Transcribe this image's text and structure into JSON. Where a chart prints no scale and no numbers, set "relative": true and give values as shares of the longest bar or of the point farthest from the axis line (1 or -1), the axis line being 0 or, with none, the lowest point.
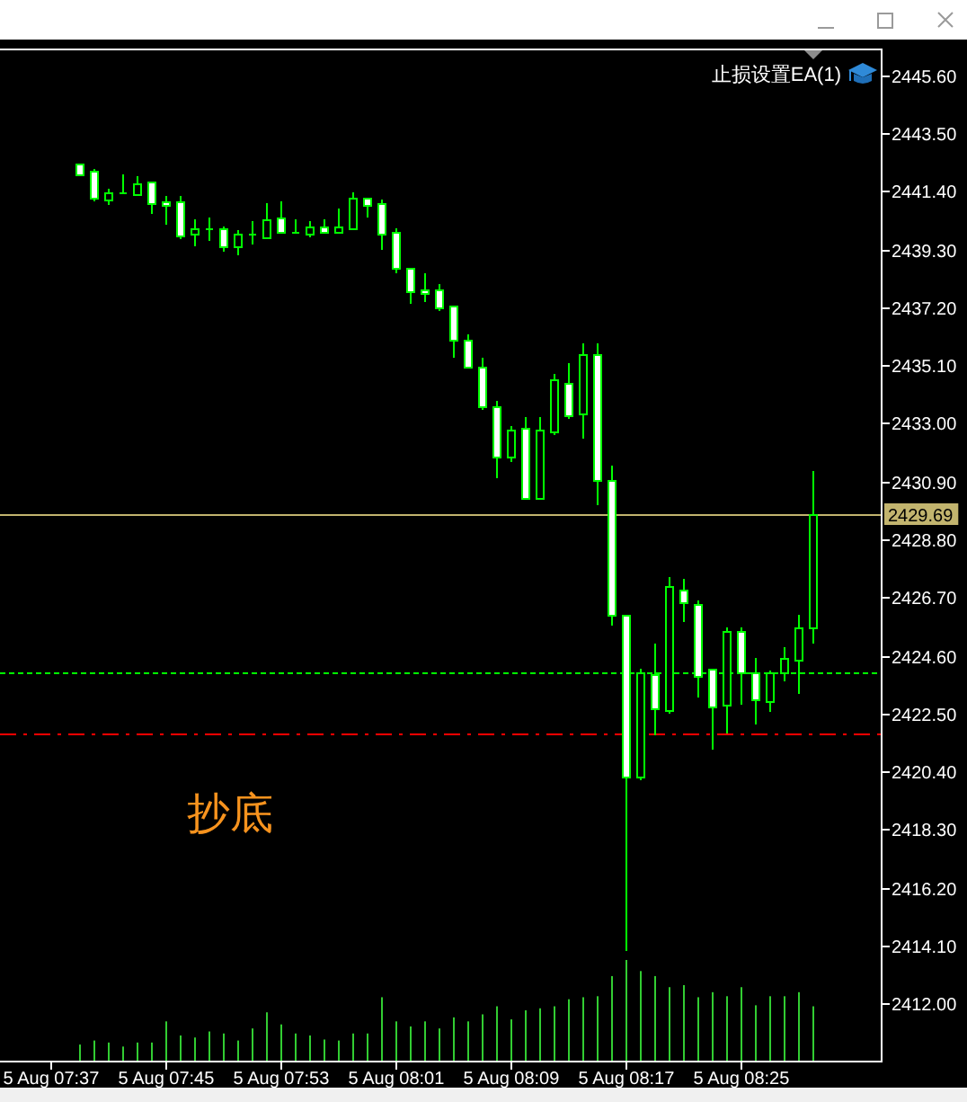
{
  "chart_data": [
    {
      "type": "candlestick",
      "categories": [
        "5 Aug 07:37",
        null,
        null,
        null,
        null,
        null,
        null,
        null,
        "5 Aug 07:45",
        null,
        null,
        null,
        null,
        null,
        null,
        null,
        "5 Aug 07:53",
        null,
        null,
        null,
        null,
        null,
        null,
        null,
        "5 Aug 08:01",
        null,
        null,
        null,
        null,
        null,
        null,
        null,
        "5 Aug 08:09",
        null,
        null,
        null,
        null,
        null,
        null,
        null,
        "5 Aug 08:17",
        null,
        null,
        null,
        null,
        null,
        null,
        null,
        "5 Aug 08:25",
        null,
        null,
        null,
        null,
        null
      ],
      "ohlc": [
        null,
        null,
        [
          2442.39,
          2442.39,
          2441.98,
          2442.02
        ],
        [
          2442.13,
          2442.2,
          2441.11,
          2441.18
        ],
        [
          2441.11,
          2441.48,
          2440.98,
          2441.33
        ],
        [
          2441.33,
          2442.0,
          2441.33,
          2441.33
        ],
        [
          2441.31,
          2441.94,
          2441.31,
          2441.68
        ],
        [
          2441.74,
          2441.74,
          2440.65,
          2440.94
        ],
        [
          2441.03,
          2441.22,
          2440.26,
          2440.92
        ],
        [
          2441.03,
          2441.22,
          2439.74,
          2439.81
        ],
        [
          2439.87,
          2440.39,
          2439.48,
          2440.05
        ],
        [
          2440.05,
          2440.44,
          2439.68,
          2440.05
        ],
        [
          2440.05,
          2440.11,
          2439.25,
          2439.38
        ],
        [
          2439.42,
          2439.98,
          2439.16,
          2439.85
        ],
        [
          2439.85,
          2440.31,
          2439.53,
          2439.85
        ],
        [
          2439.74,
          2440.96,
          2439.74,
          2440.36
        ],
        [
          2440.42,
          2441.03,
          2439.94,
          2439.94
        ],
        [
          2439.92,
          2440.38,
          2439.92,
          2439.92
        ],
        [
          2439.87,
          2440.31,
          2439.79,
          2440.1
        ],
        [
          2440.1,
          2440.38,
          2439.9,
          2439.9
        ],
        [
          2439.94,
          2440.77,
          2439.94,
          2440.1
        ],
        [
          2440.07,
          2441.35,
          2440.07,
          2441.14
        ],
        [
          2441.14,
          2441.14,
          2440.5,
          2440.92
        ],
        [
          2440.96,
          2441.09,
          2439.36,
          2439.87
        ],
        [
          2439.9,
          2440.03,
          2438.51,
          2438.6
        ],
        [
          2438.6,
          2438.6,
          2437.4,
          2437.75
        ],
        [
          2437.84,
          2438.45,
          2437.47,
          2437.73
        ],
        [
          2437.82,
          2438.01,
          2437.14,
          2437.21
        ],
        [
          2437.25,
          2437.25,
          2435.45,
          2436.0
        ],
        [
          2436.0,
          2436.21,
          2435.02,
          2435.02
        ],
        [
          2435.02,
          2435.37,
          2433.55,
          2433.63
        ],
        [
          2433.59,
          2433.79,
          2431.09,
          2431.81
        ],
        [
          2431.81,
          2432.9,
          2431.66,
          2432.75
        ],
        [
          2432.81,
          2433.22,
          2430.27,
          2430.27
        ],
        [
          2430.31,
          2433.22,
          2430.31,
          2432.75
        ],
        [
          2432.72,
          2434.8,
          2432.64,
          2434.57
        ],
        [
          2434.44,
          2435.17,
          2433.22,
          2433.31
        ],
        [
          2433.33,
          2435.89,
          2432.52,
          2435.48
        ],
        [
          2435.48,
          2435.89,
          2430.1,
          2430.92
        ],
        [
          2430.92,
          2431.46,
          2425.76,
          2426.05
        ],
        [
          2426.05,
          2426.05,
          2413.99,
          2420.23
        ],
        [
          2420.23,
          2424.09,
          2420.17,
          2423.98
        ],
        [
          2423.9,
          2425.02,
          2421.75,
          2422.66
        ],
        [
          2422.62,
          2427.43,
          2422.57,
          2427.09
        ],
        [
          2426.96,
          2427.35,
          2425.89,
          2426.5
        ],
        [
          2426.44,
          2426.59,
          2423.12,
          2423.83
        ],
        [
          2424.09,
          2424.09,
          2421.27,
          2422.73
        ],
        [
          2422.79,
          2425.59,
          2421.86,
          2425.46
        ],
        [
          2425.46,
          2425.59,
          2422.9,
          2423.98
        ],
        [
          2423.96,
          2424.5,
          2422.18,
          2422.99
        ],
        [
          2422.93,
          2424.07,
          2422.64,
          2423.96
        ],
        [
          2423.96,
          2424.9,
          2423.74,
          2424.49
        ],
        [
          2424.46,
          2426.07,
          2423.29,
          2425.59
        ],
        [
          2425.63,
          2431.27,
          2425.11,
          2429.69
        ]
      ],
      "color": "#00ff00",
      "ylim": [
        2409.94,
        2446.56
      ],
      "yticks": [
        {
          "value": 2412.0,
          "label": "2412.00"
        },
        {
          "value": 2414.1,
          "label": "2414.10"
        },
        {
          "value": 2416.2,
          "label": "2416.20"
        },
        {
          "value": 2418.3,
          "label": "2418.30"
        },
        {
          "value": 2420.4,
          "label": "2420.40"
        },
        {
          "value": 2422.5,
          "label": "2422.50"
        },
        {
          "value": 2424.6,
          "label": "2424.60"
        },
        {
          "value": 2426.7,
          "label": "2426.70"
        },
        {
          "value": 2428.8,
          "label": "2428.80"
        },
        {
          "value": 2430.9,
          "label": "2430.90"
        },
        {
          "value": 2433.0,
          "label": "2433.00"
        },
        {
          "value": 2435.1,
          "label": "2435.10"
        },
        {
          "value": 2437.2,
          "label": "2437.20"
        },
        {
          "value": 2439.3,
          "label": "2439.30"
        },
        {
          "value": 2441.4,
          "label": "2441.40"
        },
        {
          "value": 2443.5,
          "label": "2443.50"
        },
        {
          "value": 2445.6,
          "label": "2445.60"
        }
      ],
      "ref_lines": [
        {
          "axis": "y",
          "value": 2429.69,
          "label": "2429.69",
          "color": "#c2b46e",
          "line_style": "solid"
        },
        {
          "axis": "y",
          "value": 2423.98,
          "color": "#00ff00",
          "line_style": "dotted"
        },
        {
          "axis": "y",
          "value": 2421.75,
          "color": "#ff0000",
          "line_style": "dashdot"
        }
      ],
      "annotations": [
        "抄底",
        "止损设置EA(1)"
      ]
    },
    {
      "type": "bar",
      "categories": [
        null,
        null,
        null,
        null,
        null,
        null,
        null,
        null,
        null,
        null,
        null,
        null,
        null,
        null,
        null,
        null,
        null,
        null,
        null,
        null,
        null,
        null,
        null,
        null,
        null,
        null,
        null,
        null,
        null,
        null,
        null,
        null,
        null,
        null,
        null,
        null,
        null,
        null,
        null,
        null,
        null,
        null,
        null,
        null,
        null,
        null,
        null,
        null,
        null,
        null,
        null,
        null,
        null,
        null
      ],
      "values": [
        null,
        null,
        0.16,
        0.2,
        0.18,
        0.14,
        0.18,
        0.18,
        0.39,
        0.25,
        0.23,
        0.29,
        0.27,
        0.2,
        0.32,
        0.48,
        0.36,
        0.27,
        0.25,
        0.21,
        0.2,
        0.27,
        0.27,
        0.63,
        0.39,
        0.34,
        0.39,
        0.32,
        0.43,
        0.39,
        0.46,
        0.54,
        0.41,
        0.5,
        0.52,
        0.54,
        0.61,
        0.63,
        0.64,
        0.84,
        1,
        0.89,
        0.84,
        0.73,
        0.75,
        0.63,
        0.68,
        0.64,
        0.73,
        0.55,
        0.64,
        0.64,
        0.68,
        0.54
      ],
      "color": "#32cd32",
      "relative": true
    }
  ]
}
